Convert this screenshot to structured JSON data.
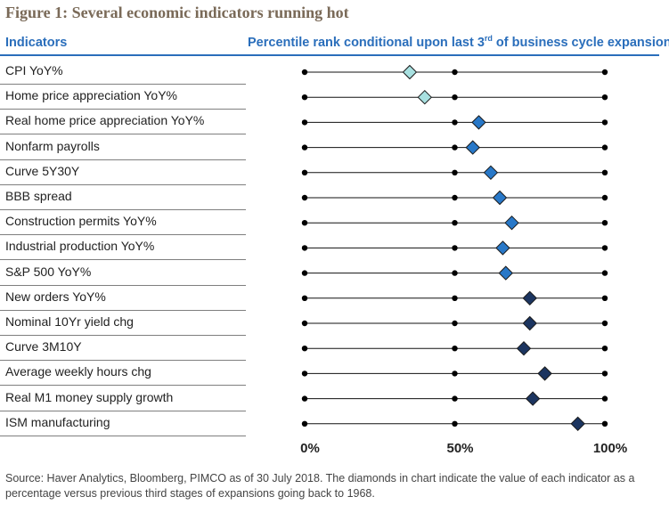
{
  "figure": {
    "title": "Figure 1: Several economic indicators running hot",
    "left_header": "Indicators",
    "right_header_pre": "Percentile rank conditional upon last 3",
    "right_header_sup": "rd",
    "right_header_post": " of business cycle expansion",
    "source": "Source: Haver Analytics, Bloomberg, PIMCO as of 30 July 2018. The diamonds in chart indicate the value of each indicator as a percentage versus previous third stages of expansions going back to 1968."
  },
  "chart_data": {
    "type": "scatter",
    "title": "Figure 1: Several economic indicators running hot",
    "xlabel": "Percentile rank conditional upon last 3rd of business cycle expansion",
    "ylabel": "Indicators",
    "xlim": [
      0,
      100
    ],
    "x_ticks": [
      0,
      50,
      100
    ],
    "x_tick_labels": [
      "0%",
      "50%",
      "100%"
    ],
    "grid": false,
    "categories": [
      "CPI YoY%",
      "Home price appreciation YoY%",
      "Real home price appreciation YoY%",
      "Nonfarm payrolls",
      "Curve 5Y30Y",
      "BBB spread",
      "Construction permits YoY%",
      "Industrial production YoY%",
      "S&P 500 YoY%",
      "New orders YoY%",
      "Nominal 10Yr yield chg",
      "Curve 3M10Y",
      "Average weekly hours chg",
      "Real M1 money supply growth",
      "ISM manufacturing"
    ],
    "values": [
      35,
      40,
      58,
      56,
      62,
      65,
      69,
      66,
      67,
      75,
      75,
      73,
      80,
      76,
      91
    ],
    "marker_colors": [
      "#a8e0e0",
      "#a8e0e0",
      "#2878c8",
      "#2878c8",
      "#2878c8",
      "#2878c8",
      "#2878c8",
      "#2878c8",
      "#2878c8",
      "#1c3560",
      "#1c3560",
      "#1c3560",
      "#1c3560",
      "#1c3560",
      "#1c3560"
    ]
  },
  "colors": {
    "accent_blue": "#2a6ebb",
    "title_brown": "#7a6a58",
    "line": "#111111"
  }
}
